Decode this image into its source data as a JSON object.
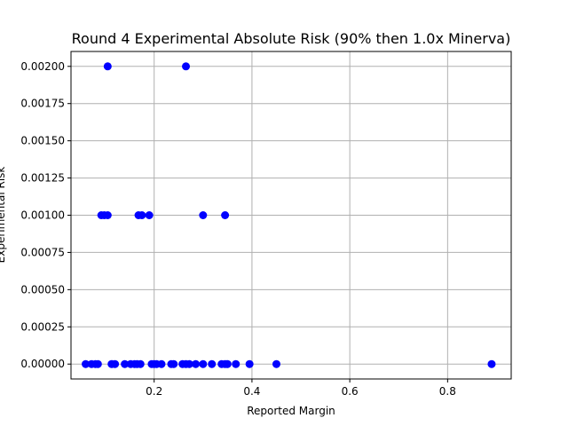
{
  "chart_data": {
    "type": "scatter",
    "title": "Round 4 Experimental Absolute Risk (90% then 1.0x Minerva)",
    "xlabel": "Reported Margin",
    "ylabel": "Experimental Risk",
    "xlim": [
      0.03,
      0.93
    ],
    "ylim": [
      -0.0001,
      0.0021
    ],
    "xticks": [
      0.2,
      0.4,
      0.6,
      0.8
    ],
    "xtick_labels": [
      "0.2",
      "0.4",
      "0.6",
      "0.8"
    ],
    "yticks": [
      0.0,
      0.00025,
      0.0005,
      0.00075,
      0.001,
      0.00125,
      0.0015,
      0.00175,
      0.002
    ],
    "ytick_labels": [
      "0.00000",
      "0.00025",
      "0.00050",
      "0.00075",
      "0.00100",
      "0.00125",
      "0.00150",
      "0.00175",
      "0.00200"
    ],
    "grid": true,
    "marker_color": "#0000ff",
    "series": [
      {
        "points": [
          {
            "x": 0.105,
            "y": 0.002
          },
          {
            "x": 0.265,
            "y": 0.002
          },
          {
            "x": 0.092,
            "y": 0.001
          },
          {
            "x": 0.098,
            "y": 0.001
          },
          {
            "x": 0.105,
            "y": 0.001
          },
          {
            "x": 0.168,
            "y": 0.001
          },
          {
            "x": 0.175,
            "y": 0.001
          },
          {
            "x": 0.19,
            "y": 0.001
          },
          {
            "x": 0.3,
            "y": 0.001
          },
          {
            "x": 0.345,
            "y": 0.001
          },
          {
            "x": 0.06,
            "y": 0.0
          },
          {
            "x": 0.072,
            "y": 0.0
          },
          {
            "x": 0.08,
            "y": 0.0
          },
          {
            "x": 0.085,
            "y": 0.0
          },
          {
            "x": 0.113,
            "y": 0.0
          },
          {
            "x": 0.12,
            "y": 0.0
          },
          {
            "x": 0.14,
            "y": 0.0
          },
          {
            "x": 0.152,
            "y": 0.0
          },
          {
            "x": 0.16,
            "y": 0.0
          },
          {
            "x": 0.165,
            "y": 0.0
          },
          {
            "x": 0.172,
            "y": 0.0
          },
          {
            "x": 0.195,
            "y": 0.0
          },
          {
            "x": 0.2,
            "y": 0.0
          },
          {
            "x": 0.205,
            "y": 0.0
          },
          {
            "x": 0.215,
            "y": 0.0
          },
          {
            "x": 0.235,
            "y": 0.0
          },
          {
            "x": 0.24,
            "y": 0.0
          },
          {
            "x": 0.258,
            "y": 0.0
          },
          {
            "x": 0.265,
            "y": 0.0
          },
          {
            "x": 0.272,
            "y": 0.0
          },
          {
            "x": 0.285,
            "y": 0.0
          },
          {
            "x": 0.3,
            "y": 0.0
          },
          {
            "x": 0.318,
            "y": 0.0
          },
          {
            "x": 0.338,
            "y": 0.0
          },
          {
            "x": 0.345,
            "y": 0.0
          },
          {
            "x": 0.35,
            "y": 0.0
          },
          {
            "x": 0.367,
            "y": 0.0
          },
          {
            "x": 0.395,
            "y": 0.0
          },
          {
            "x": 0.45,
            "y": 0.0
          },
          {
            "x": 0.89,
            "y": 0.0
          }
        ]
      }
    ]
  }
}
